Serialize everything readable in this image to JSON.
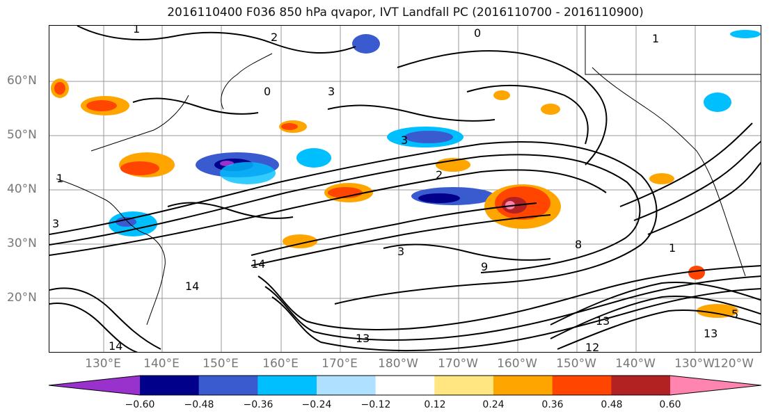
{
  "title": "2016110400 F036 850 hPa qvapor, IVT Landfall PC (2016110700 - 2016110900)",
  "lat_labels": [
    "60°N",
    "50°N",
    "40°N",
    "30°N",
    "20°N"
  ],
  "lon_labels": [
    "130°E",
    "140°E",
    "150°E",
    "160°E",
    "170°E",
    "180°W",
    "170°W",
    "160°W",
    "150°W",
    "140°W",
    "130°W",
    "120°W"
  ],
  "colorbar": {
    "ticks": [
      "−0.60",
      "−0.48",
      "−0.36",
      "−0.24",
      "−0.12",
      "0.12",
      "0.24",
      "0.36",
      "0.48",
      "0.60"
    ],
    "colors": [
      "#9932cc",
      "#00008b",
      "#3a5bcf",
      "#00bfff",
      "#b0e0ff",
      "#ffffff",
      "#ffe680",
      "#ffa500",
      "#ff4500",
      "#b22222",
      "#ff85b0"
    ]
  },
  "contour_labels": [
    "1",
    "2",
    "0",
    "1",
    "3",
    "3",
    "2",
    "1",
    "3",
    "8",
    "14",
    "14",
    "14",
    "3",
    "9",
    "13",
    "13",
    "12",
    "5",
    "1",
    "13",
    "0"
  ]
}
